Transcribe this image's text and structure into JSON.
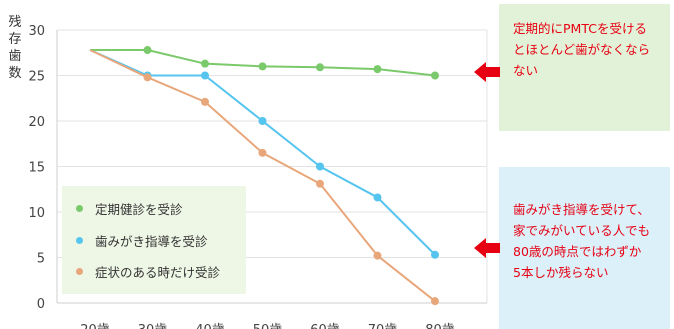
{
  "chart_data": {
    "type": "line",
    "y_axis_label": [
      "残",
      "存",
      "歯",
      "数"
    ],
    "x": [
      "20歳",
      "30歳",
      "40歳",
      "50歳",
      "60歳",
      "70歳",
      "80歳"
    ],
    "ylim": [
      0,
      30
    ],
    "yticks": [
      "0",
      "5",
      "10",
      "15",
      "20",
      "25",
      "30"
    ],
    "grid": true,
    "legend_placement": "bottom-left",
    "series": [
      {
        "name": "定期健診を受診",
        "color": "#7ac96a",
        "values": [
          27.8,
          27.8,
          26.3,
          26.0,
          25.9,
          25.7,
          25.0
        ]
      },
      {
        "name": "歯みがき指導を受診",
        "color": "#55c4ee",
        "values": [
          27.8,
          25.0,
          25.0,
          20.0,
          15.0,
          11.6,
          5.3
        ]
      },
      {
        "name": "症状のある時だけ受診",
        "color": "#e8a77b",
        "values": [
          27.8,
          24.8,
          22.1,
          16.5,
          13.1,
          5.2,
          0.2
        ]
      }
    ],
    "annotations": [
      {
        "lines": [
          "定期的にPMTCを受ける",
          "とほとんど歯がなくなら",
          "ない"
        ],
        "color": "#e60012",
        "background": "#e2f2d8"
      },
      {
        "lines": [
          "歯みがき指導を受けて、",
          "家でみがいている人でも",
          "80歳の時点ではわずか",
          "5本しか残らない"
        ],
        "color": "#e60012",
        "background": "#dcf0fa"
      }
    ]
  }
}
